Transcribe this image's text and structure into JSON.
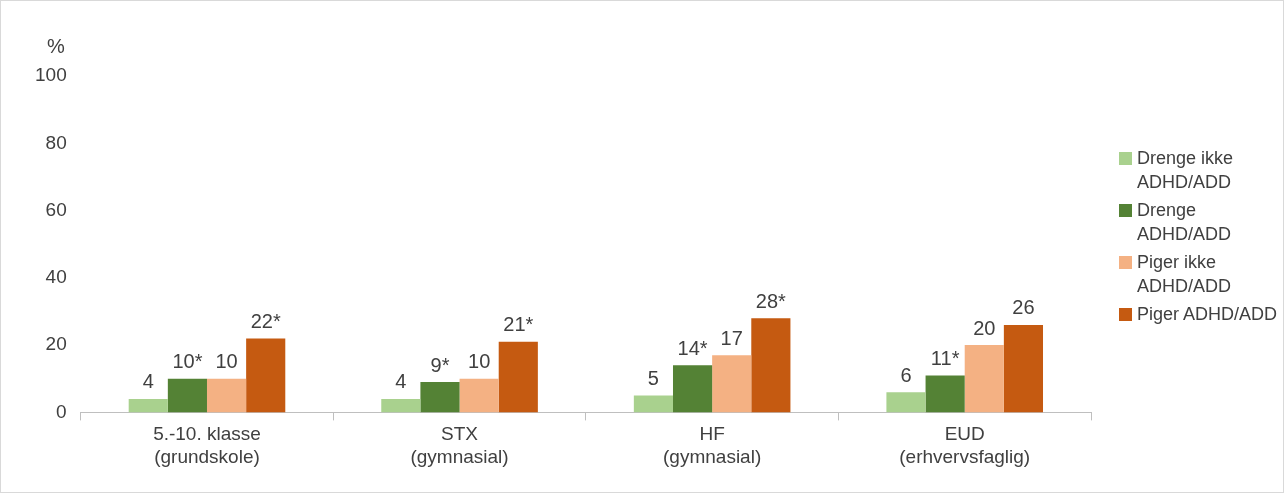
{
  "chart_data": {
    "type": "bar",
    "ylabel": "%",
    "categories": [
      "5.-10. klasse\n(grundskole)",
      "STX\n(gymnasial)",
      "HF\n(gymnasial)",
      "EUD\n(erhvervsfaglig)"
    ],
    "series": [
      {
        "name": "Drenge ikke ADHD/ADD",
        "color": "#a9d18e",
        "values": [
          4,
          4,
          5,
          6
        ],
        "value_labels": [
          "4",
          "4",
          "5",
          "6"
        ]
      },
      {
        "name": "Drenge ADHD/ADD",
        "color": "#548235",
        "values": [
          10,
          9,
          14,
          11
        ],
        "value_labels": [
          "10*",
          "9*",
          "14*",
          "11*"
        ]
      },
      {
        "name": "Piger ikke ADHD/ADD",
        "color": "#f4b183",
        "values": [
          10,
          10,
          17,
          20
        ],
        "value_labels": [
          "10",
          "10",
          "17",
          "20"
        ]
      },
      {
        "name": "Piger ADHD/ADD",
        "color": "#c55a11",
        "values": [
          22,
          21,
          28,
          26
        ],
        "value_labels": [
          "22*",
          "21*",
          "28*",
          "26"
        ]
      }
    ],
    "ylim": [
      0,
      100
    ],
    "yticks": [
      0,
      20,
      40,
      60,
      80,
      100
    ],
    "grid": false,
    "legend": "right"
  }
}
